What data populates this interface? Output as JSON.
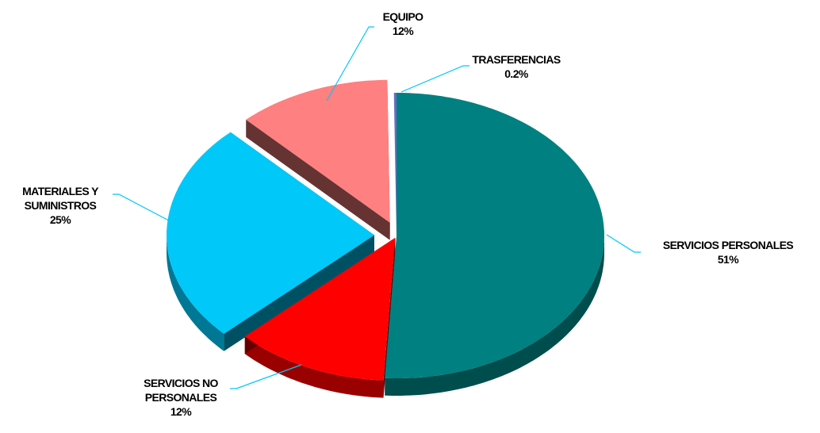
{
  "chart_data": {
    "type": "pie",
    "categories": [
      "SERVICIOS PERSONALES",
      "SERVICIOS NO PERSONALES",
      "MATERIALES Y SUMINISTROS",
      "EQUIPO",
      "TRASFERENCIAS"
    ],
    "values": [
      51,
      12,
      25,
      12,
      0.2
    ],
    "value_labels": [
      "51%",
      "12%",
      "25%",
      "12%",
      "0.2%"
    ],
    "colors": [
      "#008080",
      "#ff0000",
      "#00c8f8",
      "#ff8080",
      "#6a6ac8"
    ]
  }
}
